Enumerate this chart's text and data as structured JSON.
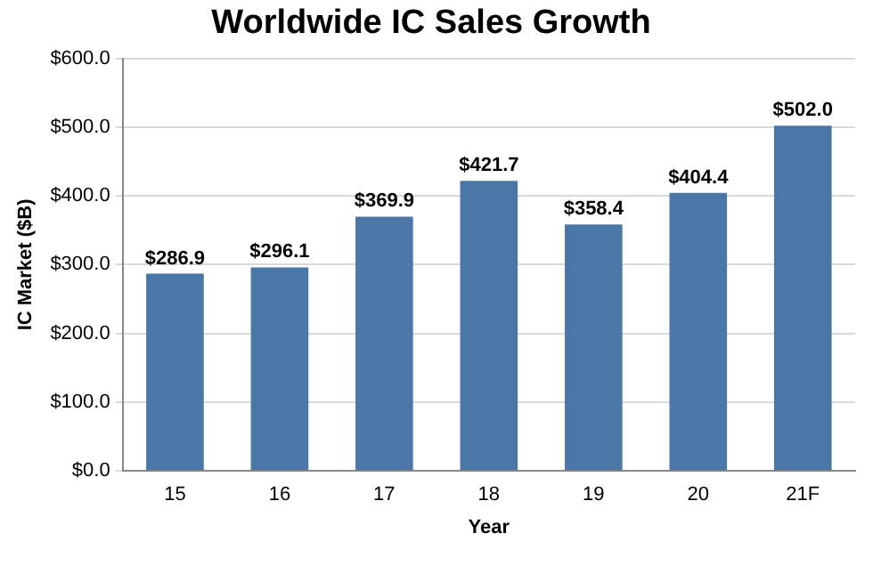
{
  "chart_data": {
    "type": "bar",
    "title": "Worldwide IC Sales Growth",
    "xlabel": "Year",
    "ylabel": "IC Market ($B)",
    "categories": [
      "15",
      "16",
      "17",
      "18",
      "19",
      "20",
      "21F"
    ],
    "values": [
      286.9,
      296.1,
      369.9,
      421.7,
      358.4,
      404.4,
      502.0
    ],
    "value_labels": [
      "$286.9",
      "$296.1",
      "$369.9",
      "$421.7",
      "$358.4",
      "$404.4",
      "$502.0"
    ],
    "color": "#4a76a8",
    "ylim": [
      0,
      600
    ],
    "yticks": [
      {
        "value": 0,
        "label": "$0.0"
      },
      {
        "value": 100,
        "label": "$100.0"
      },
      {
        "value": 200,
        "label": "$200.0"
      },
      {
        "value": 300,
        "label": "$300.0"
      },
      {
        "value": 400,
        "label": "$400.0"
      },
      {
        "value": 500,
        "label": "$500.0"
      },
      {
        "value": 600,
        "label": "$600.0"
      }
    ],
    "grid": "y"
  }
}
